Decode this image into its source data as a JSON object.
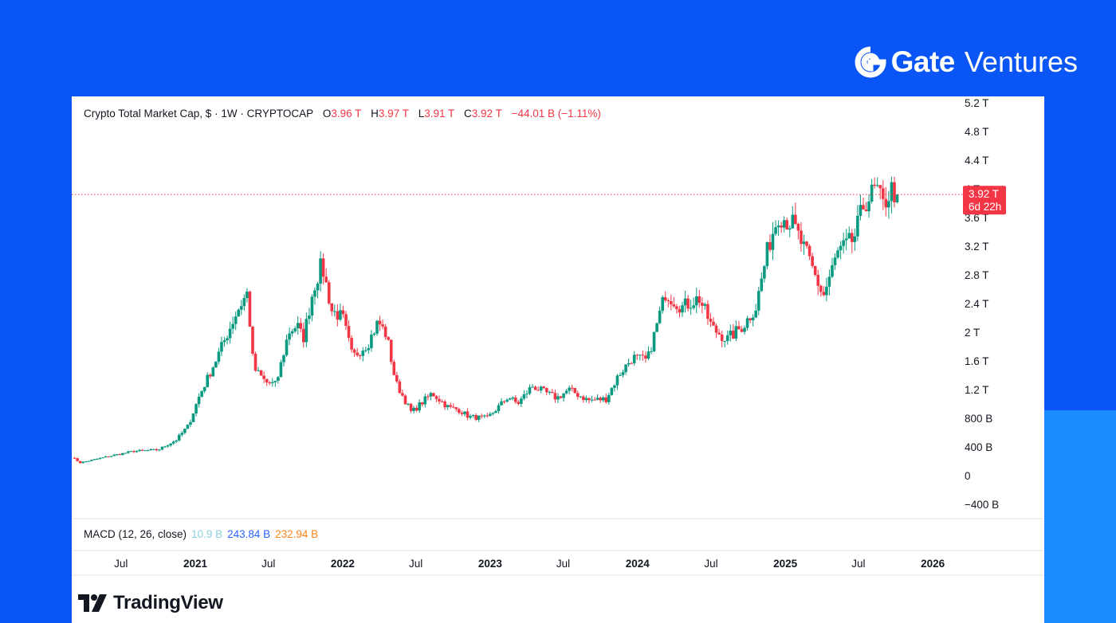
{
  "brand": {
    "name": "Gate",
    "suffix": "Ventures",
    "logo_icon": "gate-g-logo-icon"
  },
  "header": {
    "symbol": "Crypto Total Market Cap, $ · 1W · CRYPTOCAP",
    "open_label": "O",
    "open": "3.96 T",
    "high_label": "H",
    "high": "3.97 T",
    "low_label": "L",
    "low": "3.91 T",
    "close_label": "C",
    "close": "3.92 T",
    "change": "−44.01 B (−1.11%)"
  },
  "macd": {
    "label": "MACD (12, 26, close)",
    "v1": "10.9 B",
    "v2": "243.84 B",
    "v3": "232.94 B"
  },
  "price_tag": {
    "price": "3.92 T",
    "countdown": "6d 22h",
    "color": "#f23645"
  },
  "footer": {
    "brand": "TradingView",
    "logo_icon": "tradingview-logo-icon"
  },
  "colors": {
    "up": "#089981",
    "down": "#f23645",
    "background": "#0a55f5"
  },
  "chart_data": {
    "type": "candlestick",
    "title": "Crypto Total Market Cap",
    "interval": "1W",
    "y_unit": "USD",
    "y_ticks": [
      "−400 B",
      "0",
      "400 B",
      "800 B",
      "1.2 T",
      "1.6 T",
      "2 T",
      "2.4 T",
      "2.8 T",
      "3.2 T",
      "3.6 T",
      "4 T",
      "4.4 T",
      "4.8 T",
      "5.2 T"
    ],
    "x_ticks": [
      "Jul",
      "2021",
      "Jul",
      "2022",
      "Jul",
      "2023",
      "Jul",
      "2024",
      "Jul",
      "2025",
      "Jul",
      "2026"
    ],
    "ylim_billions": [
      -400,
      5200
    ],
    "x_range": [
      "2020-03",
      "2026-03"
    ],
    "last_close_billions": 3920,
    "series": [
      {
        "keypoints": [
          [
            "2020-03-01",
            260
          ],
          [
            "2020-03-22",
            180
          ],
          [
            "2020-06-01",
            270
          ],
          [
            "2020-08-01",
            340
          ],
          [
            "2020-10-01",
            360
          ],
          [
            "2020-11-15",
            500
          ],
          [
            "2020-12-15",
            700
          ],
          [
            "2021-01-10",
            1100
          ],
          [
            "2021-02-20",
            1600
          ],
          [
            "2021-04-15",
            2300
          ],
          [
            "2021-05-10",
            2550
          ],
          [
            "2021-05-25",
            1500
          ],
          [
            "2021-06-25",
            1300
          ],
          [
            "2021-07-20",
            1270
          ],
          [
            "2021-08-20",
            2000
          ],
          [
            "2021-09-10",
            2100
          ],
          [
            "2021-09-25",
            1900
          ],
          [
            "2021-10-20",
            2600
          ],
          [
            "2021-11-10",
            2950
          ],
          [
            "2021-12-05",
            2300
          ],
          [
            "2022-01-01",
            2200
          ],
          [
            "2022-01-25",
            1650
          ],
          [
            "2022-03-05",
            1850
          ],
          [
            "2022-03-30",
            2150
          ],
          [
            "2022-04-20",
            1950
          ],
          [
            "2022-05-12",
            1300
          ],
          [
            "2022-06-20",
            880
          ],
          [
            "2022-08-10",
            1150
          ],
          [
            "2022-09-20",
            950
          ],
          [
            "2022-10-15",
            920
          ],
          [
            "2022-11-10",
            820
          ],
          [
            "2022-12-25",
            800
          ],
          [
            "2023-02-15",
            1100
          ],
          [
            "2023-03-10",
            1000
          ],
          [
            "2023-04-15",
            1250
          ],
          [
            "2023-06-15",
            1080
          ],
          [
            "2023-07-15",
            1200
          ],
          [
            "2023-09-01",
            1050
          ],
          [
            "2023-10-15",
            1070
          ],
          [
            "2023-11-15",
            1400
          ],
          [
            "2023-12-20",
            1650
          ],
          [
            "2024-01-25",
            1600
          ],
          [
            "2024-03-10",
            2550
          ],
          [
            "2024-04-20",
            2350
          ],
          [
            "2024-06-01",
            2480
          ],
          [
            "2024-07-05",
            2050
          ],
          [
            "2024-08-10",
            1900
          ],
          [
            "2024-09-20",
            2100
          ],
          [
            "2024-10-20",
            2350
          ],
          [
            "2024-11-20",
            3200
          ],
          [
            "2024-12-15",
            3650
          ],
          [
            "2025-01-20",
            3500
          ],
          [
            "2025-02-25",
            3050
          ],
          [
            "2025-04-05",
            2500
          ],
          [
            "2025-05-10",
            3100
          ],
          [
            "2025-06-20",
            3300
          ],
          [
            "2025-07-15",
            3800
          ],
          [
            "2025-08-15",
            4000
          ],
          [
            "2025-08-30",
            3750
          ],
          [
            "2025-09-20",
            3990
          ],
          [
            "2025-10-05",
            3920
          ]
        ]
      }
    ]
  }
}
